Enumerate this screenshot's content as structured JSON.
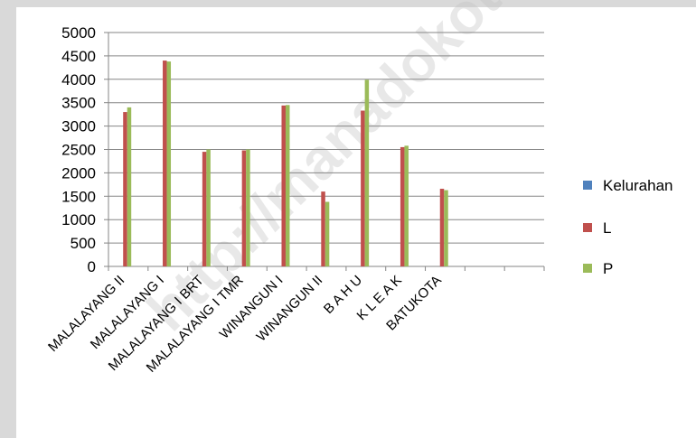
{
  "watermark": "http://manadokota",
  "chart_data": {
    "type": "bar",
    "categories": [
      "MALALAYANG II",
      "MALALAYANG I",
      "MALALAYANG I BRT",
      "MALALAYANG I TMR",
      "WINANGUN I",
      "WINANGUN II",
      "B A H U",
      "K L E A K",
      "BATUKOTA",
      "",
      ""
    ],
    "series": [
      {
        "name": "Kelurahan",
        "color": "#4f81bd",
        "values": [
          0,
          0,
          0,
          0,
          0,
          0,
          0,
          0,
          0,
          0,
          0
        ]
      },
      {
        "name": "L",
        "color": "#c0504d",
        "values": [
          3300,
          4400,
          2450,
          2480,
          3440,
          1600,
          3330,
          2550,
          1660,
          0,
          0
        ]
      },
      {
        "name": "P",
        "color": "#9bbb59",
        "values": [
          3400,
          4380,
          2500,
          2500,
          3450,
          1380,
          3990,
          2580,
          1630,
          0,
          0
        ]
      }
    ],
    "ylim": [
      0,
      5000
    ],
    "yticks": [
      0,
      500,
      1000,
      1500,
      2000,
      2500,
      3000,
      3500,
      4000,
      4500,
      5000
    ],
    "grid": true,
    "legend": "right"
  }
}
